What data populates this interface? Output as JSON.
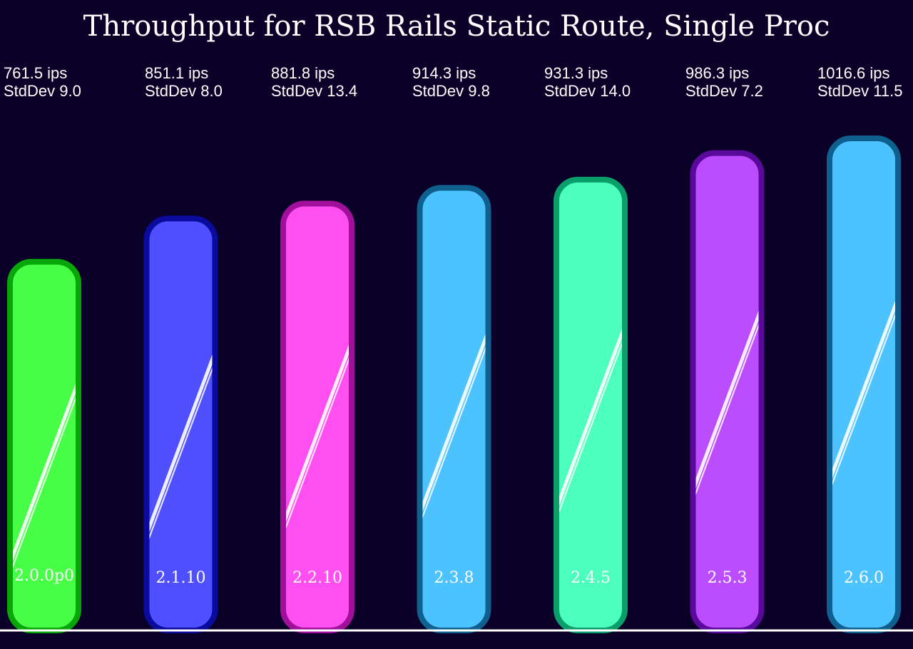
{
  "chart_data": {
    "type": "bar",
    "title": "Throughput for RSB Rails Static Route, Single Proc",
    "xlabel": "",
    "ylabel": "",
    "ylim": [
      0,
      1016.6
    ],
    "grid": false,
    "legend": "none",
    "categories": [
      "2.0.0p0",
      "2.1.10",
      "2.2.10",
      "2.3.8",
      "2.4.5",
      "2.5.3",
      "2.6.0"
    ],
    "values": [
      761.5,
      851.1,
      881.8,
      914.3,
      931.3,
      986.3,
      1016.6
    ],
    "stddev": [
      9.0,
      8.0,
      13.4,
      9.8,
      14.0,
      7.2,
      11.5
    ],
    "value_labels": [
      "761.5 ips",
      "851.1 ips",
      "881.8 ips",
      "914.3 ips",
      "931.3 ips",
      "986.3 ips",
      "1016.6 ips"
    ],
    "stddev_labels": [
      "StdDev 9.0",
      "StdDev 8.0",
      "StdDev 13.4",
      "StdDev 9.8",
      "StdDev 14.0",
      "StdDev 7.2",
      "StdDev 11.5"
    ],
    "fill_colors": [
      "#48ff48",
      "#4f4fff",
      "#ff4ff0",
      "#4cc2ff",
      "#4dffbc",
      "#bc4dff",
      "#4cc2ff"
    ],
    "stroke_colors": [
      "#08a608",
      "#0a0a9c",
      "#a0109a",
      "#0f5f8f",
      "#0a9f6a",
      "#5a0a9a",
      "#0f5f8f"
    ],
    "background_color": "#0b0027",
    "baseline_color": "#ffffff"
  }
}
